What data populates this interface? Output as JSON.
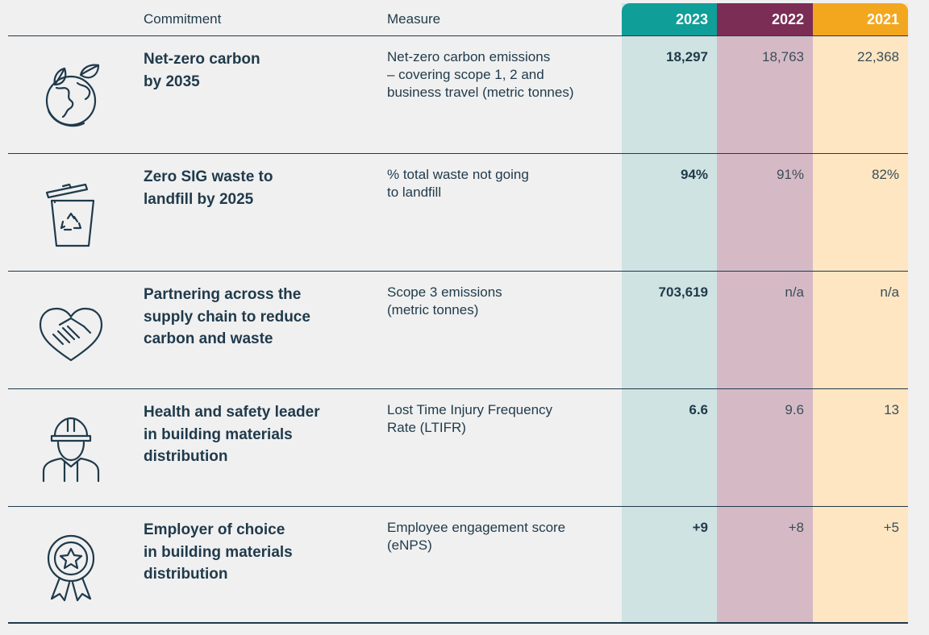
{
  "headers": {
    "commitment": "Commitment",
    "measure": "Measure",
    "years": [
      "2023",
      "2022",
      "2021"
    ]
  },
  "colors": {
    "year_2023": "#0f9e98",
    "year_2022": "#7b2d55",
    "year_2021": "#f3a71f",
    "text": "#1f3a4b"
  },
  "rows": [
    {
      "icon": "earth-leaf-icon",
      "commitment_lines": [
        "Net-zero carbon",
        "by 2035"
      ],
      "measure_lines": [
        "Net-zero carbon emissions",
        "– covering scope 1, 2 and",
        "business travel (metric tonnes)"
      ],
      "values": [
        "18,297",
        "18,763",
        "22,368"
      ]
    },
    {
      "icon": "recycle-bin-icon",
      "commitment_lines": [
        "Zero SIG waste to",
        "landfill by 2025"
      ],
      "measure_lines": [
        "% total waste not going",
        "to landfill"
      ],
      "values": [
        "94%",
        "91%",
        "82%"
      ]
    },
    {
      "icon": "heart-handshake-icon",
      "commitment_lines": [
        "Partnering across the",
        "supply chain to reduce",
        "carbon and waste"
      ],
      "measure_lines": [
        "Scope 3 emissions",
        "(metric tonnes)"
      ],
      "values": [
        "703,619",
        "n/a",
        "n/a"
      ]
    },
    {
      "icon": "hard-hat-worker-icon",
      "commitment_lines": [
        "Health and safety leader",
        "in building materials",
        "distribution"
      ],
      "measure_lines": [
        "Lost Time Injury Frequency",
        "Rate (LTIFR)"
      ],
      "values": [
        "6.6",
        "9.6",
        "13"
      ]
    },
    {
      "icon": "award-rosette-icon",
      "commitment_lines": [
        "Employer of choice",
        "in building materials",
        "distribution"
      ],
      "measure_lines": [
        "Employee engagement score",
        "(eNPS)"
      ],
      "values": [
        "+9",
        "+8",
        "+5"
      ]
    }
  ]
}
